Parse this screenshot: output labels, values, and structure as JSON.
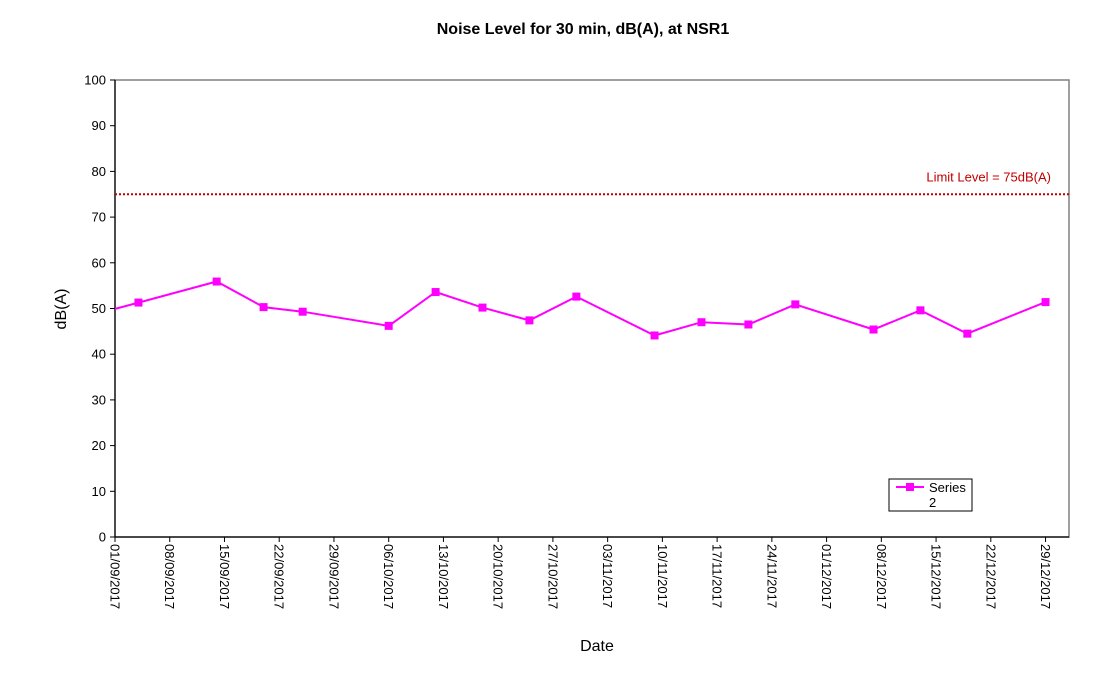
{
  "chart_data": {
    "type": "line",
    "title": "Noise Level for 30 min, dB(A), at NSR1",
    "xlabel": "Date",
    "ylabel": "dB(A)",
    "ylim": [
      0,
      100
    ],
    "yticks": [
      0,
      10,
      20,
      30,
      40,
      50,
      60,
      70,
      80,
      90,
      100
    ],
    "xlim": [
      "01/09/2017",
      "01/01/2018"
    ],
    "xtick_labels": [
      "01/09/2017",
      "08/09/2017",
      "15/09/2017",
      "22/09/2017",
      "29/09/2017",
      "06/10/2017",
      "13/10/2017",
      "20/10/2017",
      "27/10/2017",
      "03/11/2017",
      "10/11/2017",
      "17/11/2017",
      "24/11/2017",
      "01/12/2017",
      "08/12/2017",
      "15/12/2017",
      "22/12/2017",
      "29/12/2017"
    ],
    "grid": false,
    "legend_position": "bottom-right",
    "limit_line": {
      "value": 75,
      "label": "Limit Level = 75dB(A)",
      "color": "#c00000"
    },
    "series": [
      {
        "name": "Series 2",
        "color": "#ff00ff",
        "marker": "square",
        "points": [
          {
            "x": "04/09/2017",
            "y": 51.3
          },
          {
            "x": "14/09/2017",
            "y": 55.9
          },
          {
            "x": "20/09/2017",
            "y": 50.3
          },
          {
            "x": "25/09/2017",
            "y": 49.3
          },
          {
            "x": "06/10/2017",
            "y": 46.2
          },
          {
            "x": "12/10/2017",
            "y": 53.6
          },
          {
            "x": "18/10/2017",
            "y": 50.2
          },
          {
            "x": "24/10/2017",
            "y": 47.4
          },
          {
            "x": "30/10/2017",
            "y": 52.6
          },
          {
            "x": "09/11/2017",
            "y": 44.1
          },
          {
            "x": "15/11/2017",
            "y": 47.0
          },
          {
            "x": "21/11/2017",
            "y": 46.5
          },
          {
            "x": "27/11/2017",
            "y": 50.9
          },
          {
            "x": "07/12/2017",
            "y": 45.4
          },
          {
            "x": "13/12/2017",
            "y": 49.6
          },
          {
            "x": "19/12/2017",
            "y": 44.5
          },
          {
            "x": "29/12/2017",
            "y": 51.4
          }
        ]
      }
    ]
  }
}
